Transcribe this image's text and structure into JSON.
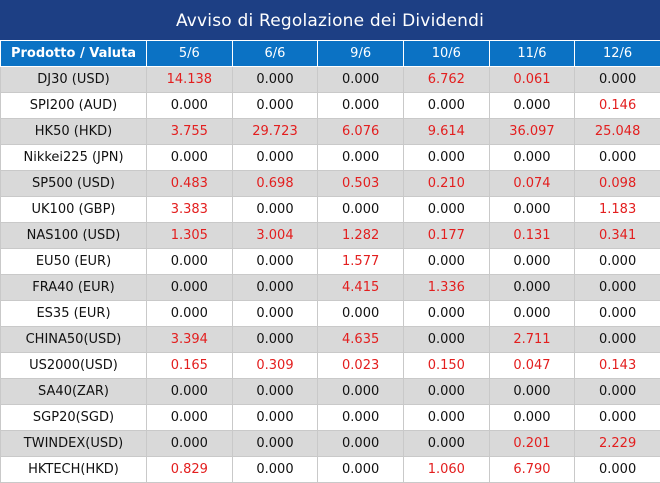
{
  "title": "Avviso di Regolazione dei Dividendi",
  "header": {
    "product_label": "Prodotto / Valuta",
    "dates": [
      "5/6",
      "6/6",
      "9/6",
      "10/6",
      "11/6",
      "12/6"
    ]
  },
  "colors": {
    "header_bg": "#0b72c4",
    "title_bg": "#1d3f84",
    "positive_value": "#e31e1e",
    "zero_value": "#111111",
    "stripe": "#d9d9d9"
  },
  "rows": [
    {
      "product": "DJ30 (USD)",
      "values": [
        "14.138",
        "0.000",
        "0.000",
        "6.762",
        "0.061",
        "0.000"
      ]
    },
    {
      "product": "SPI200 (AUD)",
      "values": [
        "0.000",
        "0.000",
        "0.000",
        "0.000",
        "0.000",
        "0.146"
      ]
    },
    {
      "product": "HK50 (HKD)",
      "values": [
        "3.755",
        "29.723",
        "6.076",
        "9.614",
        "36.097",
        "25.048"
      ]
    },
    {
      "product": "Nikkei225 (JPN)",
      "values": [
        "0.000",
        "0.000",
        "0.000",
        "0.000",
        "0.000",
        "0.000"
      ]
    },
    {
      "product": "SP500 (USD)",
      "values": [
        "0.483",
        "0.698",
        "0.503",
        "0.210",
        "0.074",
        "0.098"
      ]
    },
    {
      "product": "UK100 (GBP)",
      "values": [
        "3.383",
        "0.000",
        "0.000",
        "0.000",
        "0.000",
        "1.183"
      ]
    },
    {
      "product": "NAS100 (USD)",
      "values": [
        "1.305",
        "3.004",
        "1.282",
        "0.177",
        "0.131",
        "0.341"
      ]
    },
    {
      "product": "EU50 (EUR)",
      "values": [
        "0.000",
        "0.000",
        "1.577",
        "0.000",
        "0.000",
        "0.000"
      ]
    },
    {
      "product": "FRA40 (EUR)",
      "values": [
        "0.000",
        "0.000",
        "4.415",
        "1.336",
        "0.000",
        "0.000"
      ]
    },
    {
      "product": "ES35 (EUR)",
      "values": [
        "0.000",
        "0.000",
        "0.000",
        "0.000",
        "0.000",
        "0.000"
      ]
    },
    {
      "product": "CHINA50(USD)",
      "values": [
        "3.394",
        "0.000",
        "4.635",
        "0.000",
        "2.711",
        "0.000"
      ]
    },
    {
      "product": "US2000(USD)",
      "values": [
        "0.165",
        "0.309",
        "0.023",
        "0.150",
        "0.047",
        "0.143"
      ]
    },
    {
      "product": "SA40(ZAR)",
      "values": [
        "0.000",
        "0.000",
        "0.000",
        "0.000",
        "0.000",
        "0.000"
      ]
    },
    {
      "product": "SGP20(SGD)",
      "values": [
        "0.000",
        "0.000",
        "0.000",
        "0.000",
        "0.000",
        "0.000"
      ]
    },
    {
      "product": "TWINDEX(USD)",
      "values": [
        "0.000",
        "0.000",
        "0.000",
        "0.000",
        "0.201",
        "2.229"
      ]
    },
    {
      "product": "HKTECH(HKD)",
      "values": [
        "0.829",
        "0.000",
        "0.000",
        "1.060",
        "6.790",
        "0.000"
      ]
    }
  ]
}
